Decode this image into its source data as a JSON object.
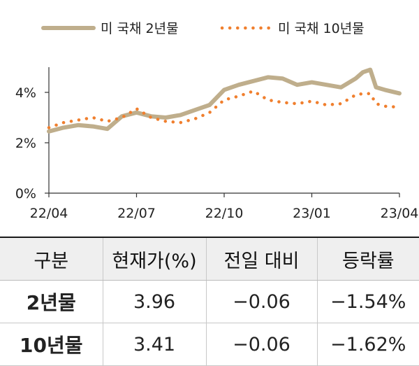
{
  "chart_data": {
    "type": "line",
    "xlabel": "",
    "ylabel": "",
    "x_ticks": [
      "22/04",
      "22/07",
      "22/10",
      "23/01",
      "23/04"
    ],
    "y_ticks": [
      "0%",
      "2%",
      "4%"
    ],
    "ylim": [
      0,
      5
    ],
    "series": [
      {
        "name": "미 국채 2년물",
        "style": "solid",
        "color": "#bfae8c",
        "x": [
          0,
          0.5,
          1,
          1.5,
          2,
          2.5,
          3,
          3.5,
          4,
          4.5,
          5,
          5.5,
          6,
          6.5,
          7,
          7.5,
          8,
          8.5,
          9,
          9.5,
          10,
          10.5,
          10.75,
          11,
          11.2,
          11.5,
          12
        ],
        "values": [
          2.45,
          2.6,
          2.7,
          2.65,
          2.55,
          3.05,
          3.2,
          3.05,
          3.0,
          3.1,
          3.3,
          3.5,
          4.1,
          4.3,
          4.45,
          4.6,
          4.55,
          4.3,
          4.4,
          4.3,
          4.2,
          4.55,
          4.8,
          4.9,
          4.2,
          4.1,
          3.96
        ]
      },
      {
        "name": "미 국채 10년물",
        "style": "dotted",
        "color": "#f07f2e",
        "x": [
          0,
          0.5,
          1,
          1.5,
          2,
          2.5,
          3,
          3.5,
          4,
          4.5,
          5,
          5.5,
          6,
          6.5,
          7,
          7.5,
          8,
          8.5,
          9,
          9.5,
          10,
          10.5,
          10.75,
          11,
          11.2,
          11.5,
          12
        ],
        "values": [
          2.6,
          2.8,
          2.9,
          3.0,
          2.85,
          3.0,
          3.35,
          3.0,
          2.85,
          2.8,
          2.95,
          3.2,
          3.7,
          3.85,
          4.05,
          3.7,
          3.6,
          3.55,
          3.65,
          3.5,
          3.55,
          3.9,
          3.95,
          3.95,
          3.55,
          3.45,
          3.41
        ]
      }
    ]
  },
  "table": {
    "headers": [
      "구분",
      "현재가(%)",
      "전일 대비",
      "등락률"
    ],
    "rows": [
      [
        "2년물",
        "3.96",
        "−0.06",
        "−1.54%"
      ],
      [
        "10년물",
        "3.41",
        "−0.06",
        "−1.62%"
      ]
    ]
  }
}
